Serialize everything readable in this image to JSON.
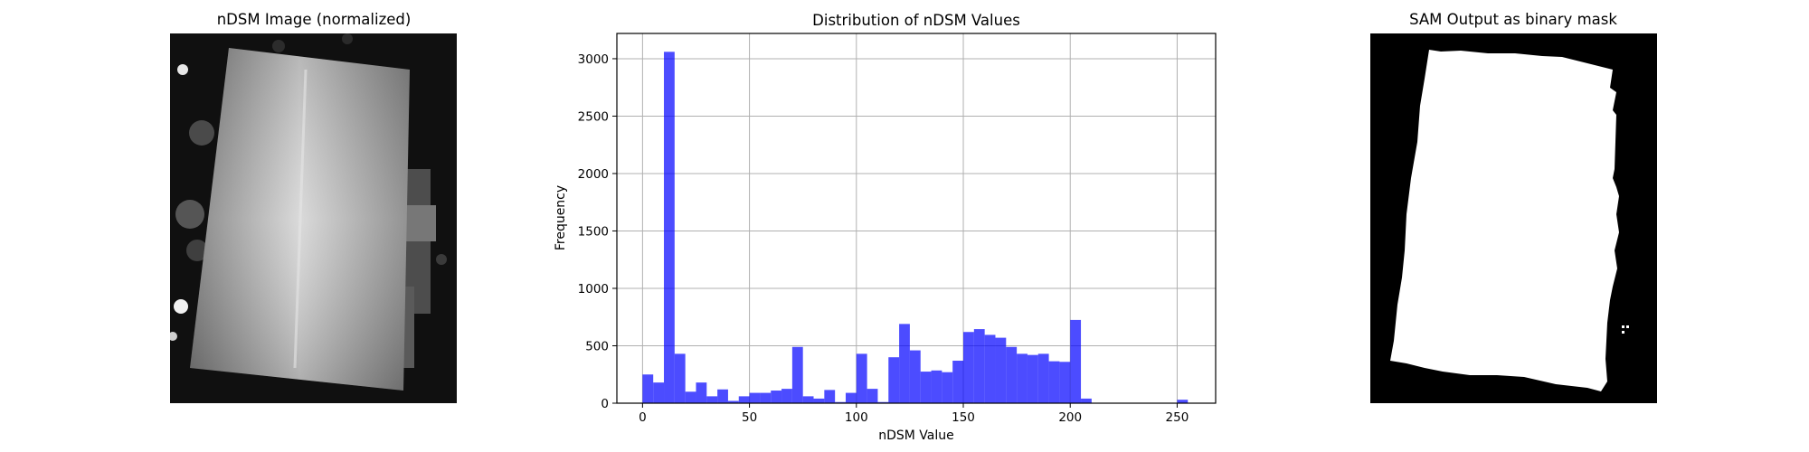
{
  "panels": {
    "left": {
      "title": "nDSM Image (normalized)"
    },
    "right": {
      "title": "SAM Output as binary mask"
    }
  },
  "chart_data": {
    "type": "bar",
    "title": "Distribution of nDSM Values",
    "xlabel": "nDSM Value",
    "ylabel": "Frequency",
    "xlim": [
      -12,
      268
    ],
    "ylim": [
      0,
      3220
    ],
    "xticks": [
      0,
      50,
      100,
      150,
      200,
      250
    ],
    "yticks": [
      0,
      500,
      1000,
      1500,
      2000,
      2500,
      3000
    ],
    "grid": true,
    "bar_color": "#0000ff",
    "bar_alpha": 0.7,
    "bin_edges": [
      0,
      5,
      10,
      15,
      20,
      25,
      30,
      35,
      40,
      45,
      50,
      55,
      60,
      65,
      70,
      75,
      80,
      85,
      90,
      95,
      100,
      105,
      110,
      115,
      120,
      125,
      130,
      135,
      140,
      145,
      150,
      155,
      160,
      165,
      170,
      175,
      180,
      185,
      190,
      195,
      200,
      205,
      210,
      215,
      220,
      225,
      230,
      235,
      240,
      245,
      250,
      255
    ],
    "values": [
      250,
      180,
      3060,
      430,
      100,
      180,
      60,
      120,
      20,
      60,
      90,
      90,
      110,
      125,
      490,
      60,
      40,
      115,
      10,
      90,
      430,
      125,
      10,
      400,
      690,
      460,
      275,
      285,
      270,
      370,
      620,
      645,
      595,
      570,
      490,
      430,
      420,
      430,
      365,
      360,
      725,
      40,
      0,
      0,
      0,
      0,
      0,
      0,
      0,
      0,
      30
    ]
  }
}
